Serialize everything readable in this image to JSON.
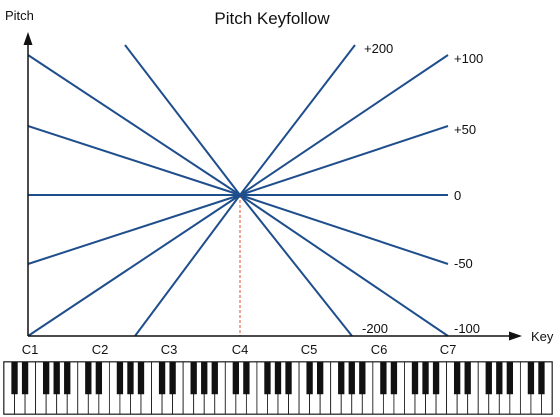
{
  "diagram": {
    "title": "Pitch Keyfollow",
    "y_axis_label": "Pitch",
    "x_axis_label": "Key",
    "pivot_key": "C4",
    "x_tick_labels": [
      "C1",
      "C2",
      "C3",
      "C4",
      "C5",
      "C6",
      "C7"
    ],
    "series": [
      {
        "label": "+200",
        "value": 200
      },
      {
        "label": "+100",
        "value": 100
      },
      {
        "label": "+50",
        "value": 50
      },
      {
        "label": "0",
        "value": 0
      },
      {
        "label": "-50",
        "value": -50
      },
      {
        "label": "-100",
        "value": -100
      },
      {
        "label": "-200",
        "value": -200
      }
    ],
    "line_color": "#1f4e8c",
    "axis_color": "#111111",
    "pivot_marker_color": "#e05030",
    "keyboard": {
      "white_key_color": "#ffffff",
      "black_key_color": "#111111"
    }
  }
}
